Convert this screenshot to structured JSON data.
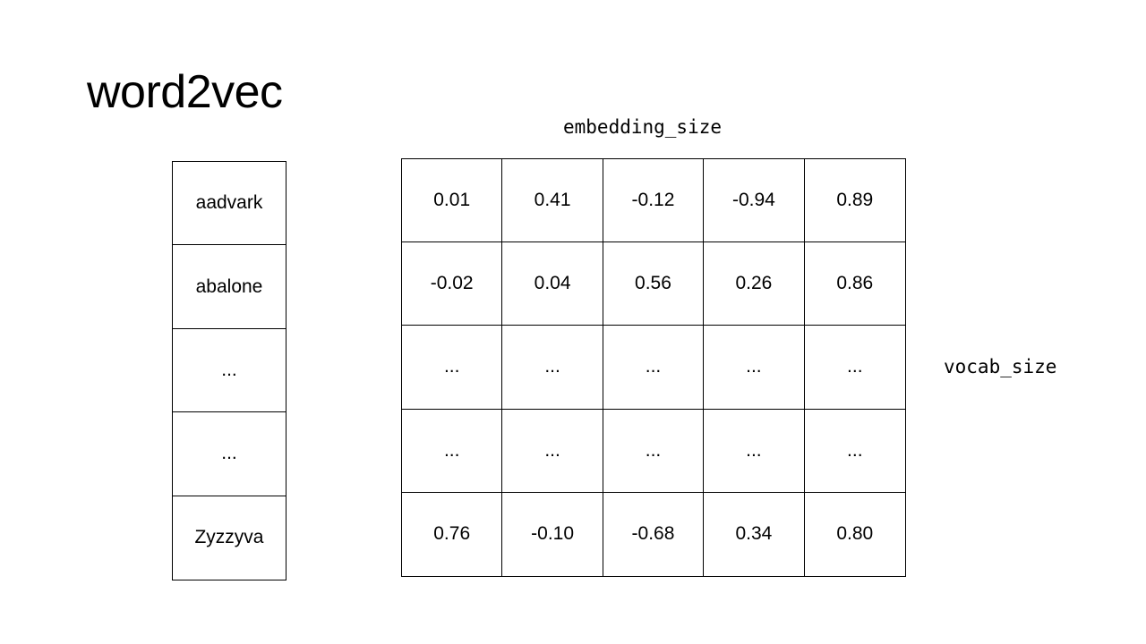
{
  "title": "word2vec",
  "embedding_label": "embedding_size",
  "vocab_label": "vocab_size",
  "vocabulary": [
    "aadvark",
    "abalone",
    "...",
    "...",
    "Zyzzyva"
  ],
  "matrix": [
    [
      "0.01",
      "0.41",
      "-0.12",
      "-0.94",
      "0.89"
    ],
    [
      "-0.02",
      "0.04",
      "0.56",
      "0.26",
      "0.86"
    ],
    [
      "...",
      "...",
      "...",
      "...",
      "..."
    ],
    [
      "...",
      "...",
      "...",
      "...",
      "..."
    ],
    [
      "0.76",
      "-0.10",
      "-0.68",
      "0.34",
      "0.80"
    ]
  ]
}
